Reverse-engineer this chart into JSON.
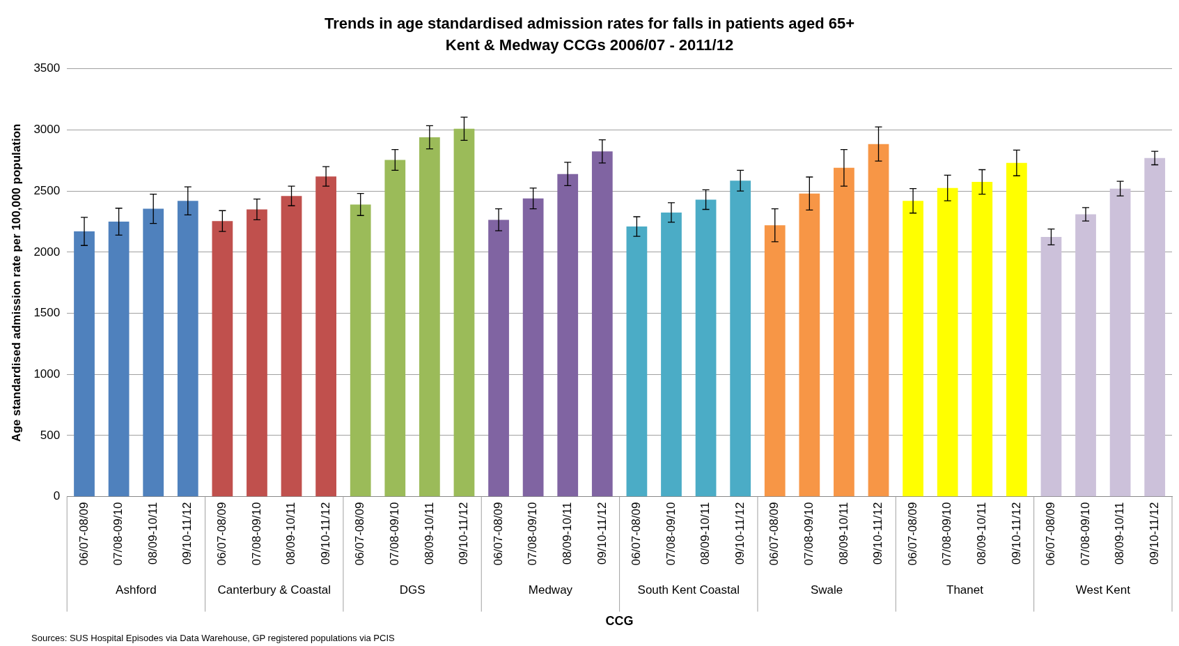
{
  "chart_data": {
    "type": "bar",
    "title": "Trends in age standardised admission rates for falls in patients aged 65+",
    "subtitle": "Kent & Medway CCGs 2006/07 - 2011/12",
    "xlabel": "CCG",
    "ylabel": "Age standardised admission rate per 100,000 population",
    "categories": [
      "06/07-08/09",
      "07/08-09/10",
      "08/09-10/11",
      "09/10-11/12",
      "06/07-08/09",
      "07/08-09/10",
      "08/09-10/11",
      "09/10-11/12",
      "06/07-08/09",
      "07/08-09/10",
      "08/09-10/11",
      "09/10-11/12",
      "06/07-08/09",
      "07/08-09/10",
      "08/09-10/11",
      "09/10-11/12",
      "06/07-08/09",
      "07/08-09/10",
      "08/09-10/11",
      "09/10-11/12",
      "06/07-08/09",
      "07/08-09/10",
      "08/09-10/11",
      "09/10-11/12",
      "06/07-08/09",
      "07/08-09/10",
      "08/09-10/11",
      "09/10-11/12",
      "06/07-08/09",
      "07/08-09/10",
      "08/09-10/11",
      "09/10-11/12"
    ],
    "values": [
      2170,
      2250,
      2355,
      2420,
      2255,
      2350,
      2460,
      2620,
      2390,
      2755,
      2940,
      3010,
      2265,
      2440,
      2640,
      2825,
      2210,
      2325,
      2430,
      2585,
      2220,
      2480,
      2690,
      2885,
      2420,
      2525,
      2575,
      2730,
      2125,
      2310,
      2520,
      2770
    ],
    "errors": [
      115,
      110,
      120,
      115,
      85,
      85,
      80,
      80,
      90,
      85,
      95,
      95,
      90,
      85,
      95,
      95,
      80,
      80,
      80,
      85,
      135,
      135,
      150,
      140,
      100,
      105,
      100,
      105,
      65,
      55,
      60,
      55
    ],
    "colors": [
      "#4f81bd",
      "#4f81bd",
      "#4f81bd",
      "#4f81bd",
      "#c0504d",
      "#c0504d",
      "#c0504d",
      "#c0504d",
      "#9bbb59",
      "#9bbb59",
      "#9bbb59",
      "#9bbb59",
      "#8064a2",
      "#8064a2",
      "#8064a2",
      "#8064a2",
      "#4bacc6",
      "#4bacc6",
      "#4bacc6",
      "#4bacc6",
      "#f79646",
      "#f79646",
      "#f79646",
      "#f79646",
      "#ffff00",
      "#ffff00",
      "#ffff00",
      "#ffff00",
      "#ccc1da",
      "#ccc1da",
      "#ccc1da",
      "#ccc1da"
    ],
    "ylim": [
      0,
      3500
    ],
    "yticks": [
      0,
      500,
      1000,
      1500,
      2000,
      2500,
      3000,
      3500
    ],
    "grid": "y",
    "legend": false,
    "annotations": [
      "Ashford",
      "Canterbury & Coastal",
      "DGS",
      "Medway",
      "South Kent Coastal",
      "Swale",
      "Thanet",
      "West Kent",
      "Sources: SUS Hospital Episodes via Data Warehouse, GP registered populations via PCIS"
    ]
  }
}
